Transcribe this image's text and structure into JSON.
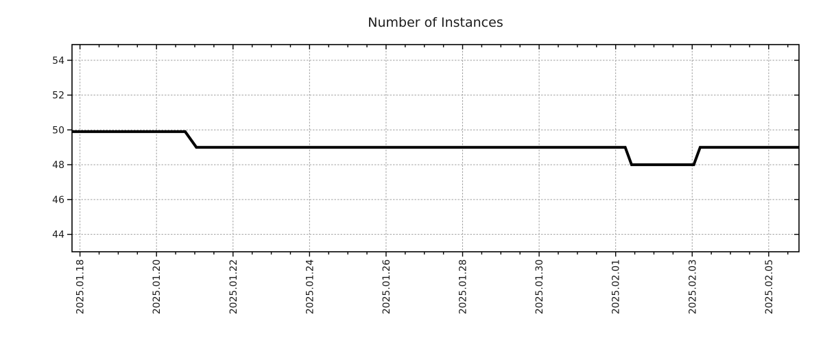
{
  "chart_data": {
    "type": "line",
    "title": "Number of Instances",
    "xlabel": "",
    "ylabel": "",
    "grid": true,
    "legend": null,
    "x_tick_labels": [
      "2025.01.18",
      "2025.01.20",
      "2025.01.22",
      "2025.01.24",
      "2025.01.26",
      "2025.01.28",
      "2025.01.30",
      "2025.02.01",
      "2025.02.03",
      "2025.02.05"
    ],
    "x_tick_label_rotation": -90,
    "x_minor_tick_interval_hours": 12,
    "y_ticks": [
      44,
      46,
      48,
      50,
      52,
      54
    ],
    "ylim": [
      43.0,
      54.9
    ],
    "xlim": [
      "2025-01-17T19:00",
      "2025-02-05T19:00"
    ],
    "axis_color": "#000000",
    "grid_color": "#a0a0a0",
    "text_color": "#1a1a1a",
    "series": [
      {
        "name": "instances",
        "color": "#000000",
        "points": [
          {
            "t": "2025-01-17T19:00",
            "v": 49.9
          },
          {
            "t": "2025-01-20T18:00",
            "v": 49.9
          },
          {
            "t": "2025-01-21T01:00",
            "v": 49.0
          },
          {
            "t": "2025-02-01T06:00",
            "v": 49.0
          },
          {
            "t": "2025-02-01T10:00",
            "v": 48.0
          },
          {
            "t": "2025-02-03T01:00",
            "v": 48.0
          },
          {
            "t": "2025-02-03T05:00",
            "v": 49.0
          },
          {
            "t": "2025-02-05T19:00",
            "v": 49.0
          }
        ]
      }
    ]
  }
}
